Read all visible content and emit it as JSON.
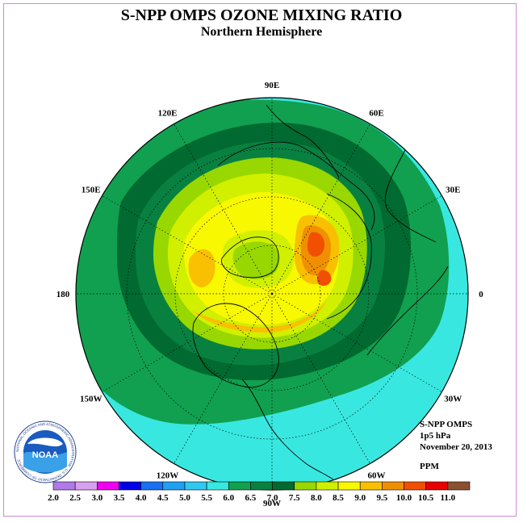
{
  "title": "S-NPP OMPS OZONE MIXING RATIO",
  "subtitle": "Northern Hemisphere",
  "lon_labels": [
    "90E",
    "60E",
    "30E",
    "0",
    "30W",
    "60W",
    "90W",
    "120W",
    "150W",
    "180",
    "150E",
    "120E"
  ],
  "info": {
    "instrument": "S-NPP OMPS",
    "level": "1p5 hPa",
    "date": "November 20, 2013",
    "units": "PPM"
  },
  "colorbar": {
    "ticks": [
      "2.0",
      "2.5",
      "3.0",
      "3.5",
      "4.0",
      "4.5",
      "5.0",
      "5.5",
      "6.0",
      "6.5",
      "7.0",
      "7.5",
      "8.0",
      "8.5",
      "9.0",
      "9.5",
      "10.0",
      "10.5",
      "11.0"
    ],
    "colors": [
      "#b07ae8",
      "#d8a0f0",
      "#f000f0",
      "#0000e8",
      "#1870f0",
      "#20a0f0",
      "#30c8f0",
      "#38e8e0",
      "#10a050",
      "#088040",
      "#006a30",
      "#98d800",
      "#d0f000",
      "#f8f800",
      "#f8c000",
      "#f09000",
      "#f05000",
      "#e80000",
      "#8a5030"
    ]
  },
  "logo": {
    "text": "NOAA",
    "ring_text": "NATIONAL OCEANIC AND ATMOSPHERIC ADMINISTRATION · U.S. DEPARTMENT OF COMMERCE"
  }
}
